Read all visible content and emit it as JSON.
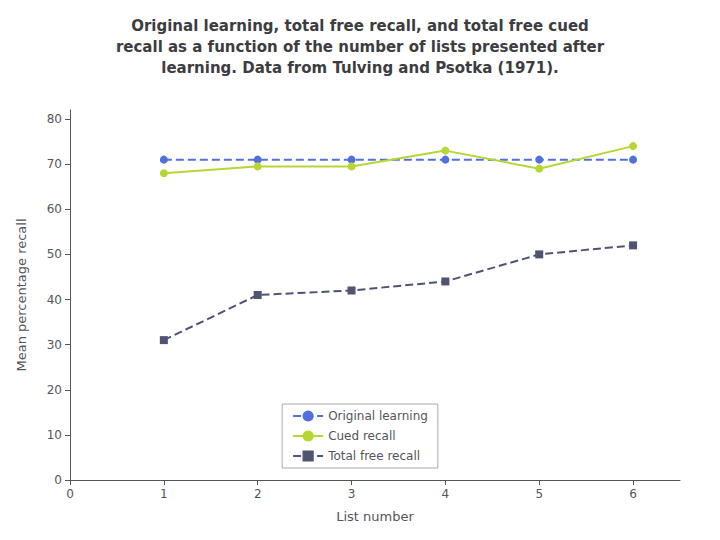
{
  "chart_data": {
    "type": "line",
    "title": "Original learning, total free recall, and total free cued\nrecall as a function of the number of lists presented after\nlearning. Data from Tulving and Psotka (1971).",
    "xlabel": "List number",
    "ylabel": "Mean percentage recall",
    "x": [
      1,
      2,
      3,
      4,
      5,
      6
    ],
    "series": [
      {
        "name": "Original learning",
        "values": [
          71,
          71,
          71,
          71,
          71,
          71
        ],
        "marker": "circle",
        "line_style": "dashed"
      },
      {
        "name": "Cued recall",
        "values": [
          68,
          69.5,
          69.5,
          73,
          69,
          74
        ],
        "marker": "circle",
        "line_style": "solid"
      },
      {
        "name": "Total free recall",
        "values": [
          31,
          41,
          42,
          44,
          50,
          52
        ],
        "marker": "square",
        "line_style": "dashed"
      }
    ],
    "xlim": [
      0,
      6.5
    ],
    "xticks": [
      0,
      1,
      2,
      3,
      4,
      5,
      6
    ],
    "ylim": [
      0,
      82
    ],
    "yticks": [
      0,
      10,
      20,
      30,
      40,
      50,
      60,
      70,
      80
    ],
    "grid": false,
    "legend": "bottom"
  }
}
